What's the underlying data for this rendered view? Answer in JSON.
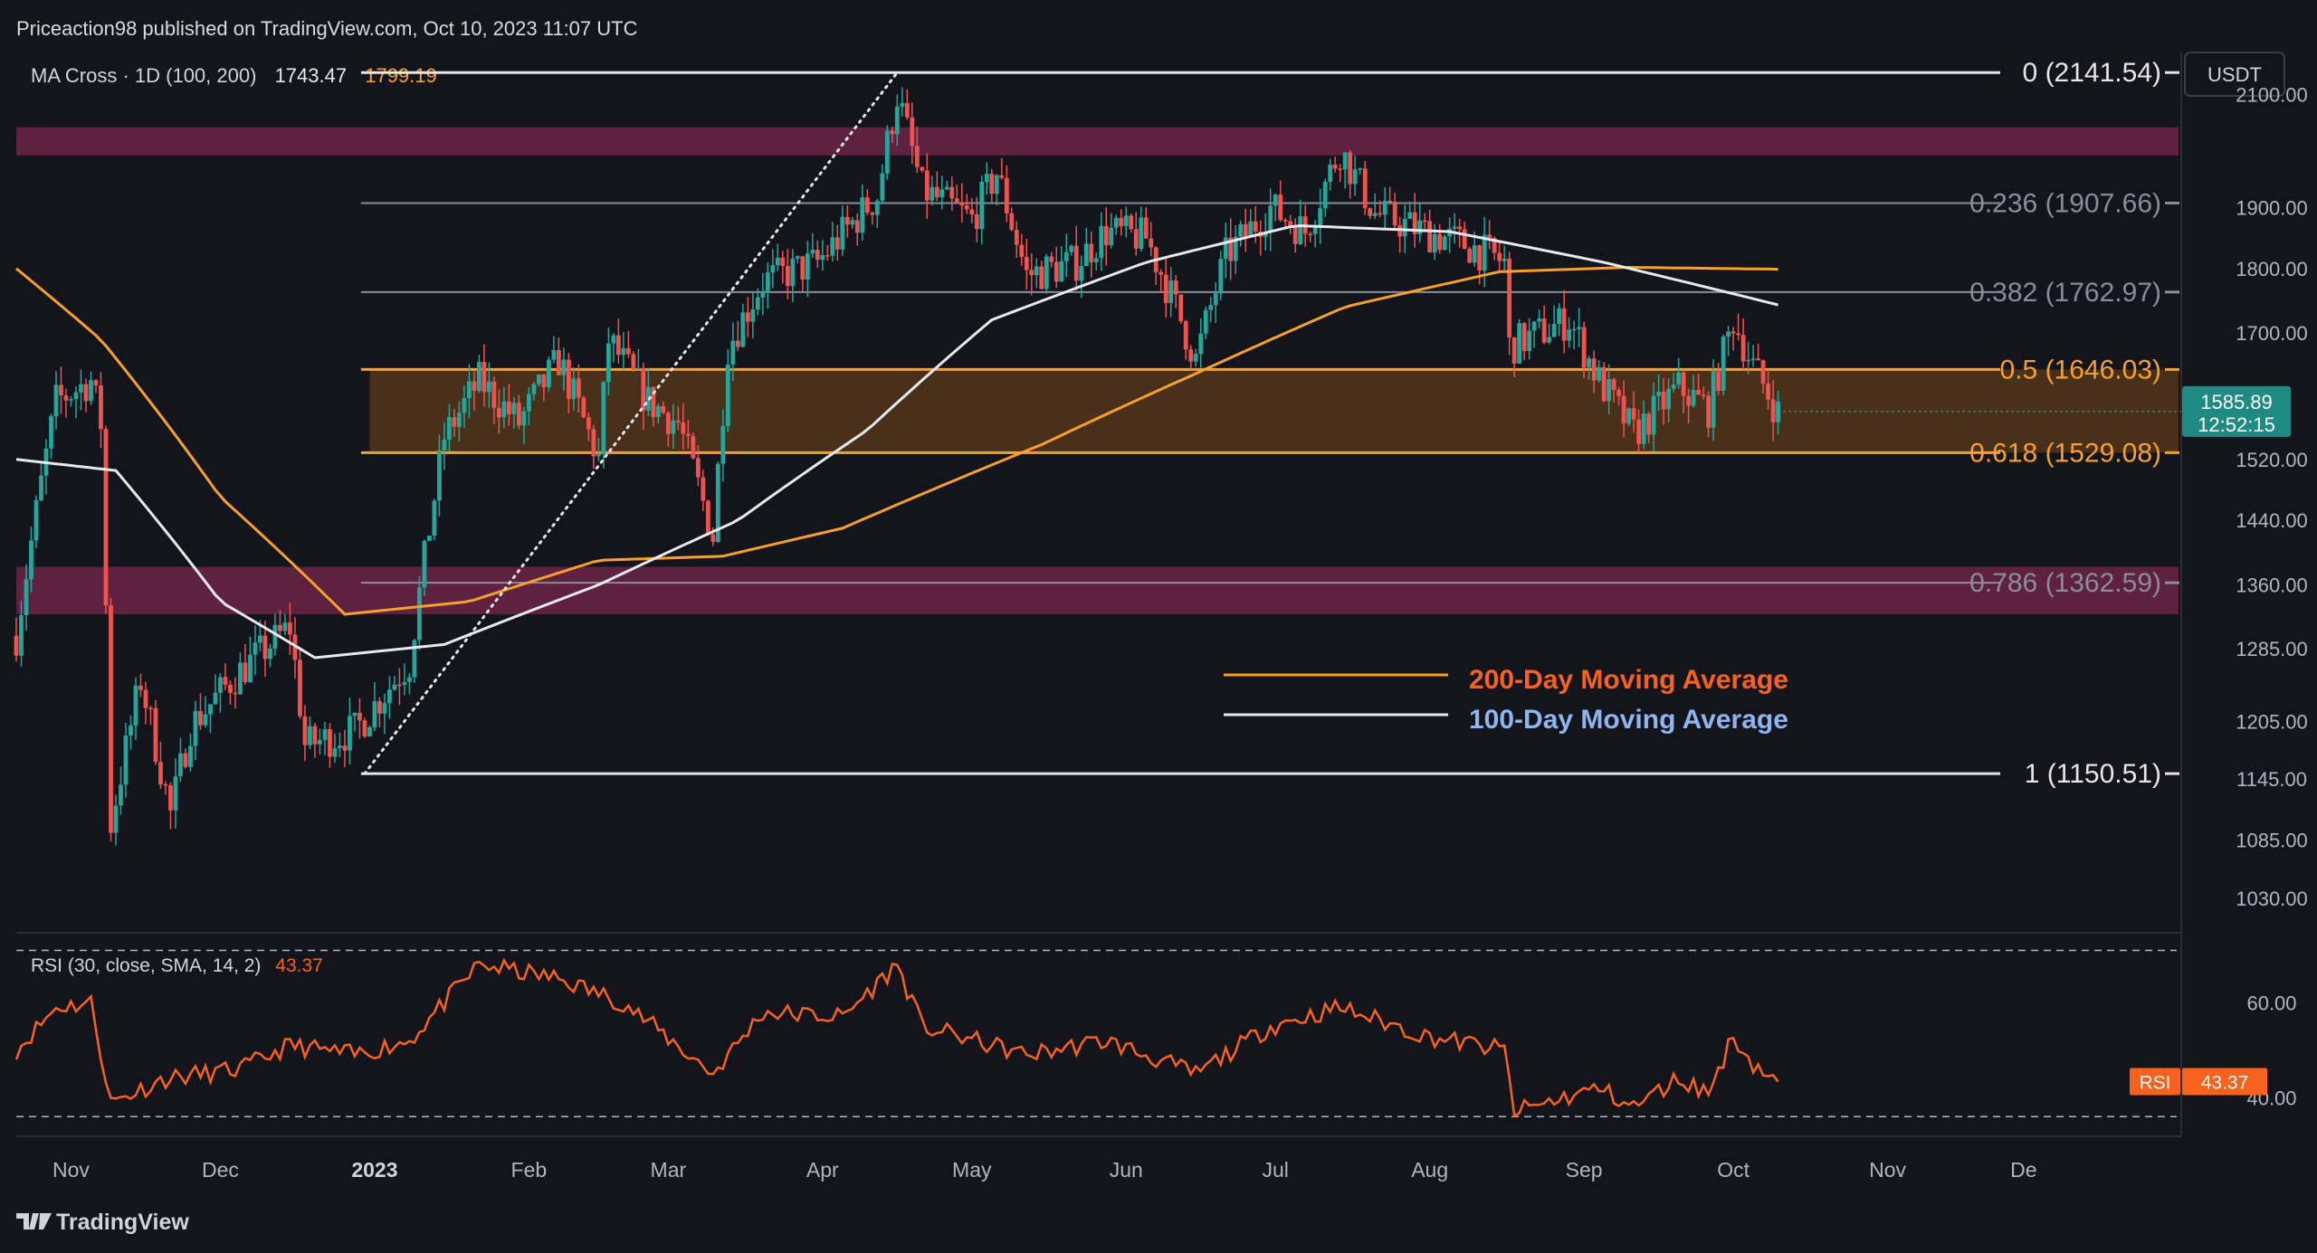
{
  "header": {
    "publisher": "Priceaction98 published on TradingView.com, Oct 10, 2023 11:07 UTC",
    "indicator_name": "MA Cross · 1D (100, 200)",
    "ma100_value": "1743.47",
    "ma200_value": "1799.19",
    "currency_button": "USDT"
  },
  "footer": {
    "logo_text": "TradingView"
  },
  "colors": {
    "background": "#14151c",
    "up_candle": "#26a69a",
    "down_candle": "#ef5350",
    "ma200": "#f7a12a",
    "ma100": "#e8e8ef",
    "fib_neutral": "#8a8d96",
    "fib_orange": "#f7a12a",
    "zone_pink": "#6b2346",
    "zone_orange": "#5a3a1a",
    "rsi_line": "#f7631e"
  },
  "chart_data": [
    {
      "type": "candlestick",
      "title": "",
      "y_axis": {
        "scale": "log",
        "range": [
          1000,
          2180
        ],
        "tick_labels": [
          "2100.00",
          "1900.00",
          "1800.00",
          "1700.00",
          "1520.00",
          "1440.00",
          "1360.00",
          "1285.00",
          "1205.00",
          "1145.00",
          "1085.00",
          "1030.00"
        ]
      },
      "x_axis": {
        "range": [
          "2022-10-21",
          "2023-12-30"
        ],
        "tick_labels": [
          "Nov",
          "Dec",
          "2023",
          "Feb",
          "Mar",
          "Apr",
          "May",
          "Jun",
          "Jul",
          "Aug",
          "Sep",
          "Oct",
          "Nov",
          "De"
        ]
      },
      "current_price": {
        "value": "1585.89",
        "countdown": "12:52:15"
      },
      "fib_levels": [
        {
          "label": "0 (2141.54)",
          "value": 2141.54,
          "style": "white"
        },
        {
          "label": "0.236 (1907.66)",
          "value": 1907.66,
          "style": "gray"
        },
        {
          "label": "0.382 (1762.97)",
          "value": 1762.97,
          "style": "gray"
        },
        {
          "label": "0.5 (1646.03)",
          "value": 1646.03,
          "style": "orange"
        },
        {
          "label": "0.618 (1529.08)",
          "value": 1529.08,
          "style": "orange"
        },
        {
          "label": "0.786 (1362.59)",
          "value": 1362.59,
          "style": "gray"
        },
        {
          "label": "1 (1150.51)",
          "value": 1150.51,
          "style": "white"
        }
      ],
      "fib_anchor_line": {
        "from": {
          "date": "2022-12-30",
          "price": 1150.51
        },
        "to": {
          "date": "2023-04-16",
          "price": 2141.54
        }
      },
      "zones": [
        {
          "name": "resistance",
          "price_from": 1990,
          "price_to": 2040,
          "color": "pink"
        },
        {
          "name": "fib-pocket",
          "price_from": 1529.08,
          "price_to": 1646.03,
          "color": "orange"
        },
        {
          "name": "support",
          "price_from": 1325,
          "price_to": 1382,
          "color": "pink"
        }
      ],
      "legend": [
        {
          "label": "200-Day Moving Average",
          "color": "#f7a12a"
        },
        {
          "label": "100-Day Moving Average",
          "color": "#e8e8ef"
        }
      ],
      "series": [
        {
          "name": "ETHUSDT",
          "kind": "ohlc",
          "daily_close_anchors": [
            [
              "2022-10-21",
              1300
            ],
            [
              "2022-10-29",
              1600
            ],
            [
              "2022-11-05",
              1630
            ],
            [
              "2022-11-07",
              1570
            ],
            [
              "2022-11-09",
              1100
            ],
            [
              "2022-11-15",
              1250
            ],
            [
              "2022-11-21",
              1110
            ],
            [
              "2022-11-25",
              1200
            ],
            [
              "2022-12-05",
              1260
            ],
            [
              "2022-12-15",
              1310
            ],
            [
              "2022-12-18",
              1180
            ],
            [
              "2022-12-28",
              1195
            ],
            [
              "2023-01-08",
              1270
            ],
            [
              "2023-01-15",
              1550
            ],
            [
              "2023-01-22",
              1630
            ],
            [
              "2023-01-30",
              1570
            ],
            [
              "2023-02-07",
              1660
            ],
            [
              "2023-02-15",
              1520
            ],
            [
              "2023-02-17",
              1690
            ],
            [
              "2023-02-25",
              1600
            ],
            [
              "2023-03-03",
              1570
            ],
            [
              "2023-03-10",
              1420
            ],
            [
              "2023-03-13",
              1680
            ],
            [
              "2023-03-20",
              1780
            ],
            [
              "2023-03-31",
              1810
            ],
            [
              "2023-04-12",
              1920
            ],
            [
              "2023-04-16",
              2100
            ],
            [
              "2023-04-21",
              1930
            ],
            [
              "2023-05-01",
              1880
            ],
            [
              "2023-05-06",
              1960
            ],
            [
              "2023-05-12",
              1790
            ],
            [
              "2023-05-22",
              1810
            ],
            [
              "2023-05-28",
              1860
            ],
            [
              "2023-06-05",
              1850
            ],
            [
              "2023-06-12",
              1720
            ],
            [
              "2023-06-15",
              1660
            ],
            [
              "2023-06-21",
              1820
            ],
            [
              "2023-06-30",
              1900
            ],
            [
              "2023-07-07",
              1860
            ],
            [
              "2023-07-14",
              2000
            ],
            [
              "2023-07-21",
              1890
            ],
            [
              "2023-07-31",
              1860
            ],
            [
              "2023-08-08",
              1840
            ],
            [
              "2023-08-16",
              1810
            ],
            [
              "2023-08-17",
              1680
            ],
            [
              "2023-08-29",
              1720
            ],
            [
              "2023-09-04",
              1630
            ],
            [
              "2023-09-11",
              1555
            ],
            [
              "2023-09-20",
              1620
            ],
            [
              "2023-09-26",
              1590
            ],
            [
              "2023-10-01",
              1720
            ],
            [
              "2023-10-05",
              1650
            ],
            [
              "2023-10-10",
              1585
            ]
          ]
        },
        {
          "name": "200-Day Moving Average",
          "kind": "line",
          "points": [
            [
              "2022-10-21",
              1800
            ],
            [
              "2022-11-07",
              1690
            ],
            [
              "2022-12-01",
              1470
            ],
            [
              "2022-12-26",
              1325
            ],
            [
              "2023-01-20",
              1340
            ],
            [
              "2023-02-15",
              1390
            ],
            [
              "2023-03-12",
              1395
            ],
            [
              "2023-04-05",
              1430
            ],
            [
              "2023-05-15",
              1540
            ],
            [
              "2023-06-15",
              1640
            ],
            [
              "2023-07-15",
              1740
            ],
            [
              "2023-08-15",
              1795
            ],
            [
              "2023-09-10",
              1802
            ],
            [
              "2023-10-10",
              1799
            ]
          ]
        },
        {
          "name": "100-Day Moving Average",
          "kind": "line",
          "points": [
            [
              "2022-10-21",
              1520
            ],
            [
              "2022-11-10",
              1505
            ],
            [
              "2022-12-01",
              1340
            ],
            [
              "2022-12-20",
              1275
            ],
            [
              "2023-01-15",
              1290
            ],
            [
              "2023-02-15",
              1360
            ],
            [
              "2023-03-15",
              1440
            ],
            [
              "2023-04-10",
              1560
            ],
            [
              "2023-05-05",
              1720
            ],
            [
              "2023-06-05",
              1810
            ],
            [
              "2023-07-05",
              1870
            ],
            [
              "2023-08-05",
              1860
            ],
            [
              "2023-09-05",
              1810
            ],
            [
              "2023-10-10",
              1743
            ]
          ]
        }
      ]
    },
    {
      "type": "line",
      "title": "",
      "indicator_label": "RSI (30, close, SMA, 14, 2)",
      "value_label": "43.37",
      "badge_text": "RSI",
      "y_axis": {
        "range": [
          33,
          73
        ],
        "tick_labels": [
          "60.00",
          "40.00"
        ],
        "band": [
          36,
          71
        ]
      },
      "series": [
        {
          "name": "RSI",
          "points": [
            [
              "2022-10-21",
              50
            ],
            [
              "2022-10-29",
              59
            ],
            [
              "2022-11-05",
              60
            ],
            [
              "2022-11-09",
              39
            ],
            [
              "2022-11-20",
              44
            ],
            [
              "2022-12-05",
              46
            ],
            [
              "2022-12-15",
              51
            ],
            [
              "2022-12-28",
              49
            ],
            [
              "2023-01-08",
              52
            ],
            [
              "2023-01-22",
              68
            ],
            [
              "2023-02-07",
              65
            ],
            [
              "2023-02-20",
              60
            ],
            [
              "2023-03-10",
              45
            ],
            [
              "2023-03-20",
              58
            ],
            [
              "2023-04-05",
              57
            ],
            [
              "2023-04-16",
              68
            ],
            [
              "2023-04-21",
              55
            ],
            [
              "2023-05-12",
              49
            ],
            [
              "2023-05-28",
              52
            ],
            [
              "2023-06-15",
              45
            ],
            [
              "2023-06-30",
              55
            ],
            [
              "2023-07-14",
              59
            ],
            [
              "2023-07-31",
              53
            ],
            [
              "2023-08-16",
              50
            ],
            [
              "2023-08-18",
              37
            ],
            [
              "2023-09-04",
              42
            ],
            [
              "2023-09-11",
              38
            ],
            [
              "2023-09-20",
              44
            ],
            [
              "2023-09-26",
              41
            ],
            [
              "2023-10-01",
              53
            ],
            [
              "2023-10-05",
              47
            ],
            [
              "2023-10-10",
              43.37
            ]
          ]
        }
      ]
    }
  ]
}
